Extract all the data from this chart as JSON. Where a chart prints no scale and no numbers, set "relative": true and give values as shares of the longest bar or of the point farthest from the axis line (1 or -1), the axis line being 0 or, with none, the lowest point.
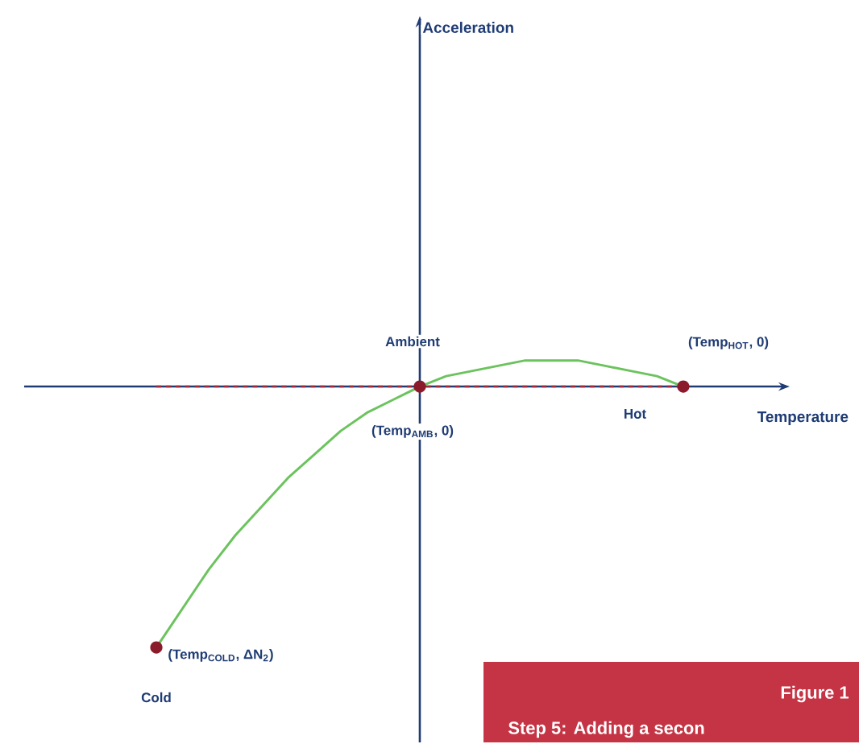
{
  "chart_data": {
    "type": "line",
    "relative": true,
    "xlabel": "Temperature",
    "categories": [
      null,
      null,
      null,
      null,
      null,
      null,
      null,
      null,
      null,
      null,
      null,
      null,
      null,
      null,
      null,
      null,
      null,
      null,
      null,
      null,
      null
    ],
    "series": [
      {
        "color": "#6cc35e",
        "line_style": "solid",
        "values": [
          -1,
          -0.85,
          -0.7,
          -0.57,
          -0.46,
          -0.35,
          -0.26,
          -0.17,
          -0.1,
          -0.05,
          0,
          0.04,
          0.06,
          0.08,
          0.1,
          0.1,
          0.1,
          0.08,
          0.06,
          0.04,
          0
        ]
      }
    ],
    "ref_lines": [
      {
        "axis": "y",
        "value": 0,
        "color": "#1f3c74",
        "line_style": "solid"
      },
      {
        "axis": "y",
        "value": 0,
        "color": "#a3283a",
        "line_style": "dashed"
      }
    ],
    "annotations": [
      "Acceleration",
      "Ambient",
      "(Temp$_{AMB}$, 0)",
      "(Temp$_{HOT}$, 0)",
      "Hot",
      "(Temp$_{COLD}$, ΔN$_{2}$)",
      "Cold",
      "Figure 1",
      "Step 5: Adding a secon"
    ]
  }
}
